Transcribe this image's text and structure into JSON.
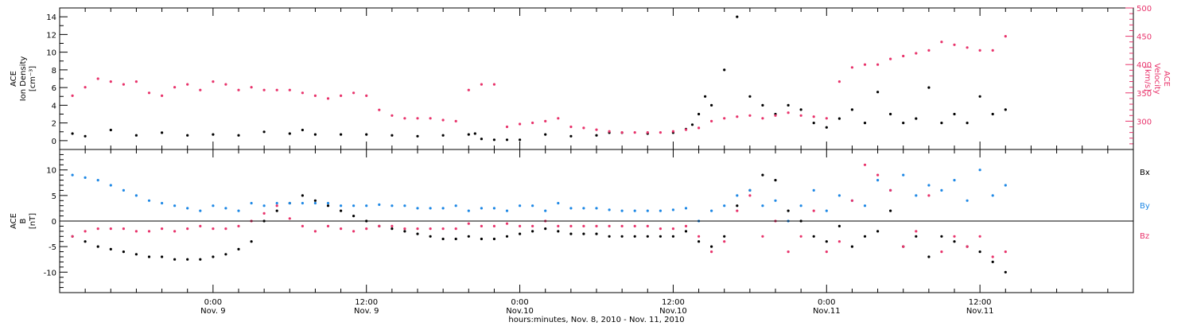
{
  "chart_data": [
    {
      "type": "scatter",
      "panel": "top",
      "ylabel_lines": [
        "ACE",
        "Ion Density",
        "[cm⁻³]"
      ],
      "ylabel2_lines": [
        "ACE",
        "Velocity",
        "[km/s]"
      ],
      "ylim": [
        -1,
        15
      ],
      "y2lim": [
        250,
        500
      ],
      "yticks": [
        "0",
        "2",
        "4",
        "6",
        "8",
        "10",
        "12",
        "14"
      ],
      "y2ticks": [
        "300",
        "350",
        "400",
        "450",
        "500"
      ],
      "colors": {
        "density": "#000000",
        "velocity": "#e8336b"
      },
      "series": [
        {
          "key": "density",
          "axis": "left",
          "x": [
            -11,
            -10,
            -8,
            -6,
            -4,
            -2,
            0,
            2,
            4,
            6,
            7,
            8,
            10,
            12,
            14,
            16,
            18,
            20,
            20.5,
            21,
            22,
            23,
            24,
            26,
            28,
            30,
            31,
            32,
            34,
            36,
            37,
            37.5,
            38,
            38.5,
            39,
            40,
            41,
            42,
            43,
            44,
            45,
            46,
            47,
            48,
            49,
            50,
            51,
            52,
            53,
            54,
            55,
            56,
            57,
            58,
            59,
            60,
            61,
            62
          ],
          "y": [
            0.8,
            0.5,
            1.2,
            0.6,
            0.9,
            0.6,
            0.7,
            0.6,
            1.0,
            0.8,
            1.2,
            0.7,
            0.7,
            0.7,
            0.6,
            0.5,
            0.6,
            0.7,
            0.8,
            0.2,
            0.1,
            0.1,
            0.1,
            0.7,
            0.5,
            0.6,
            0.9,
            0.9,
            0.8,
            0.9,
            1.3,
            1.8,
            3.0,
            5.0,
            4.0,
            8.0,
            14.0,
            5.0,
            4.0,
            3.0,
            4.0,
            3.5,
            2.0,
            1.5,
            2.5,
            3.5,
            2.0,
            5.5,
            3.0,
            2.0,
            2.5,
            6.0,
            2.0,
            3.0,
            2.0,
            5.0,
            3.0,
            3.5
          ]
        },
        {
          "key": "velocity",
          "axis": "right",
          "x": [
            -11,
            -10,
            -9,
            -8,
            -7,
            -6,
            -5,
            -4,
            -3,
            -2,
            -1,
            0,
            1,
            2,
            3,
            4,
            5,
            6,
            7,
            8,
            9,
            10,
            11,
            12,
            13,
            14,
            15,
            16,
            17,
            18,
            19,
            20,
            21,
            22,
            23,
            24,
            25,
            26,
            27,
            28,
            29,
            30,
            31,
            32,
            33,
            34,
            35,
            36,
            37,
            38,
            39,
            40,
            41,
            42,
            43,
            44,
            45,
            46,
            47,
            48,
            49,
            50,
            51,
            52,
            53,
            54,
            55,
            56,
            57,
            58,
            59,
            60,
            61,
            62
          ],
          "y": [
            345,
            360,
            375,
            370,
            365,
            370,
            350,
            345,
            360,
            365,
            355,
            370,
            365,
            355,
            360,
            355,
            355,
            355,
            350,
            345,
            340,
            345,
            350,
            345,
            320,
            310,
            305,
            305,
            305,
            302,
            300,
            355,
            365,
            365,
            290,
            295,
            297,
            300,
            305,
            290,
            288,
            285,
            282,
            280,
            280,
            280,
            280,
            282,
            285,
            288,
            300,
            305,
            308,
            310,
            305,
            310,
            315,
            310,
            308,
            305,
            370,
            395,
            400,
            400,
            410,
            415,
            420,
            425,
            440,
            435,
            430,
            425,
            425,
            450
          ]
        }
      ]
    },
    {
      "type": "scatter",
      "panel": "bottom",
      "ylabel_lines": [
        "ACE",
        "B",
        "[nT]"
      ],
      "ylim": [
        -14,
        14
      ],
      "yticks": [
        "-10",
        "-5",
        "0",
        "5",
        "10"
      ],
      "legend": [
        "Bx",
        "By",
        "Bz"
      ],
      "colors": {
        "Bx": "#000000",
        "By": "#1e88e5",
        "Bz": "#e8336b"
      },
      "series": [
        {
          "key": "Bx",
          "x": [
            -11,
            -10,
            -9,
            -8,
            -7,
            -6,
            -5,
            -4,
            -3,
            -2,
            -1,
            0,
            1,
            2,
            3,
            4,
            5,
            6,
            7,
            8,
            9,
            10,
            11,
            12,
            13,
            14,
            15,
            16,
            17,
            18,
            19,
            20,
            21,
            22,
            23,
            24,
            25,
            26,
            27,
            28,
            29,
            30,
            31,
            32,
            33,
            34,
            35,
            36,
            37,
            38,
            39,
            40,
            41,
            42,
            43,
            44,
            45,
            46,
            47,
            48,
            49,
            50,
            51,
            52,
            53,
            54,
            55,
            56,
            57,
            58,
            59,
            60,
            61,
            62
          ],
          "y": [
            -3,
            -4,
            -5,
            -5.5,
            -6,
            -6.5,
            -7,
            -7,
            -7.5,
            -7.5,
            -7.5,
            -7,
            -6.5,
            -5.5,
            -4,
            0,
            2,
            3.5,
            5,
            4,
            3,
            2,
            1,
            0,
            -1,
            -1.5,
            -2,
            -2.5,
            -3,
            -3.5,
            -3.5,
            -3,
            -3.5,
            -3.5,
            -3,
            -2.5,
            -2,
            -1.5,
            -2,
            -2.5,
            -2.5,
            -2.5,
            -3,
            -3,
            -3,
            -3,
            -3,
            -3,
            -2,
            -4,
            -5,
            -3,
            3,
            6,
            9,
            8,
            2,
            0,
            -3,
            -4,
            -1,
            -5,
            -3,
            -2,
            2,
            -5,
            -3,
            -7,
            -3,
            -4,
            -5,
            -6,
            -8,
            -10
          ]
        },
        {
          "key": "By",
          "x": [
            -11,
            -10,
            -9,
            -8,
            -7,
            -6,
            -5,
            -4,
            -3,
            -2,
            -1,
            0,
            1,
            2,
            3,
            4,
            5,
            6,
            7,
            8,
            9,
            10,
            11,
            12,
            13,
            14,
            15,
            16,
            17,
            18,
            19,
            20,
            21,
            22,
            23,
            24,
            25,
            26,
            27,
            28,
            29,
            30,
            31,
            32,
            33,
            34,
            35,
            36,
            37,
            38,
            39,
            40,
            41,
            42,
            43,
            44,
            45,
            46,
            47,
            48,
            49,
            50,
            51,
            52,
            53,
            54,
            55,
            56,
            57,
            58,
            59,
            60,
            61,
            62
          ],
          "y": [
            9,
            8.5,
            8,
            7,
            6,
            5,
            4,
            3.5,
            3,
            2.5,
            2,
            3,
            2.5,
            2,
            3.5,
            3,
            3.5,
            3.5,
            3.5,
            3.5,
            3.5,
            3,
            3,
            3,
            3.2,
            3,
            3,
            2.5,
            2.5,
            2.5,
            3,
            2,
            2.5,
            2.5,
            2,
            3,
            3,
            2,
            3.5,
            2.5,
            2.5,
            2.5,
            2.2,
            2,
            2,
            2,
            2,
            2.2,
            2.5,
            0,
            2,
            3,
            5,
            6,
            3,
            4,
            0,
            3,
            6,
            2,
            5,
            4,
            3,
            8,
            6,
            9,
            5,
            7,
            6,
            8,
            4,
            10,
            5,
            7
          ]
        },
        {
          "key": "Bz",
          "x": [
            -11,
            -10,
            -9,
            -8,
            -7,
            -6,
            -5,
            -4,
            -3,
            -2,
            -1,
            0,
            1,
            2,
            3,
            4,
            5,
            6,
            7,
            8,
            9,
            10,
            11,
            12,
            13,
            14,
            15,
            16,
            17,
            18,
            19,
            20,
            21,
            22,
            23,
            24,
            25,
            26,
            27,
            28,
            29,
            30,
            31,
            32,
            33,
            34,
            35,
            36,
            37,
            38,
            39,
            40,
            41,
            42,
            43,
            44,
            45,
            46,
            47,
            48,
            49,
            50,
            51,
            52,
            53,
            54,
            55,
            56,
            57,
            58,
            59,
            60,
            61,
            62
          ],
          "y": [
            -3,
            -2,
            -1.5,
            -1.5,
            -1.5,
            -2,
            -2,
            -1.5,
            -2,
            -1.5,
            -1,
            -1.5,
            -1.5,
            -1,
            0,
            1.5,
            3,
            0.5,
            -1,
            -2,
            -1,
            -1.5,
            -2,
            -1.5,
            -1,
            -1,
            -1.5,
            -1.5,
            -1.5,
            -1.5,
            -1.5,
            -0.5,
            -1,
            -1,
            -0.5,
            -1,
            -1,
            0,
            -1,
            -1,
            -1,
            -1,
            -1,
            -1,
            -1,
            -1,
            -1.5,
            -1.5,
            -1,
            -3,
            -6,
            -4,
            2,
            5,
            -3,
            0,
            -6,
            -3,
            2,
            -6,
            -4,
            4,
            11,
            9,
            6,
            -5,
            -2,
            5,
            -6,
            -3,
            -5,
            -3,
            -7,
            -6
          ]
        }
      ]
    }
  ],
  "xaxis": {
    "xlim": [
      -12,
      72
    ],
    "major_ticks": [
      {
        "x": 0,
        "time": "0:00",
        "day": "Nov. 9"
      },
      {
        "x": 12,
        "time": "12:00",
        "day": "Nov. 9"
      },
      {
        "x": 24,
        "time": "0:00",
        "day": "Nov.10"
      },
      {
        "x": 36,
        "time": "12:00",
        "day": "Nov.10"
      },
      {
        "x": 48,
        "time": "0:00",
        "day": "Nov.11"
      },
      {
        "x": 60,
        "time": "12:00",
        "day": "Nov.11"
      }
    ],
    "xlabel": "hours:minutes, Nov.  8, 2010 - Nov. 11, 2010"
  }
}
